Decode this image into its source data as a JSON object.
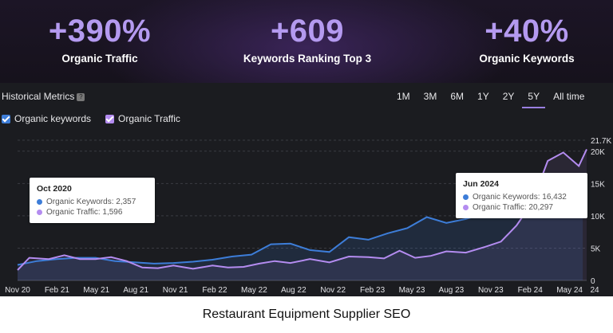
{
  "stats": [
    {
      "value": "+390%",
      "label": "Organic Traffic"
    },
    {
      "value": "+609",
      "label": "Keywords Ranking Top 3"
    },
    {
      "value": "+40%",
      "label": "Organic Keywords"
    }
  ],
  "panel": {
    "title": "Historical Metrics",
    "help_icon": "question-icon",
    "ranges": [
      "1M",
      "3M",
      "6M",
      "1Y",
      "2Y",
      "5Y",
      "All time"
    ],
    "active_range": "5Y",
    "legend": [
      {
        "label": "Organic keywords",
        "color": "#3d7dd8"
      },
      {
        "label": "Organic Traffic",
        "color": "#b48cf0"
      }
    ]
  },
  "tooltips": [
    {
      "title": "Oct 2020",
      "rows": [
        {
          "label": "Organic Keywords:",
          "value": "2,357"
        },
        {
          "label": "Organic Traffic:",
          "value": "1,596"
        }
      ]
    },
    {
      "title": "Jun 2024",
      "rows": [
        {
          "label": "Organic Keywords:",
          "value": "16,432"
        },
        {
          "label": "Organic Traffic:",
          "value": "20,297"
        }
      ]
    }
  ],
  "chart_data": {
    "type": "line",
    "x_labels": [
      "Nov 20",
      "Feb 21",
      "May 21",
      "Aug 21",
      "Nov 21",
      "Feb 22",
      "May 22",
      "Aug 22",
      "Nov 22",
      "Feb 23",
      "May 23",
      "Aug 23",
      "Nov 23",
      "Feb 24",
      "May 24",
      "24"
    ],
    "y_ticks": [
      0,
      5000,
      10000,
      15000,
      20000,
      21700
    ],
    "y_tick_labels": [
      "0",
      "5K",
      "10K",
      "15K",
      "20K",
      "21.7K"
    ],
    "ylim": [
      0,
      21700
    ],
    "series": [
      {
        "name": "Organic keywords",
        "color": "#3d7dd8",
        "x": [
          0,
          0.5,
          1,
          1.5,
          2,
          2.5,
          3,
          3.5,
          4,
          4.5,
          5,
          5.5,
          6,
          6.5,
          7,
          7.5,
          8,
          8.5,
          9,
          9.5,
          10,
          10.5,
          11,
          11.5,
          12,
          12.5,
          13,
          13.5,
          14,
          14.5
        ],
        "values": [
          2400,
          3000,
          3300,
          3500,
          3500,
          3000,
          2800,
          2600,
          2700,
          2900,
          3200,
          3700,
          4000,
          5600,
          5700,
          4700,
          4400,
          6700,
          6300,
          7300,
          8100,
          9800,
          8900,
          9500,
          10400,
          10600,
          11000,
          13200,
          13500,
          16400
        ]
      },
      {
        "name": "Organic Traffic",
        "color": "#b48cf0",
        "x": [
          0,
          0.3,
          0.8,
          1.2,
          1.6,
          2.0,
          2.4,
          2.8,
          3.2,
          3.6,
          4.0,
          4.5,
          5.0,
          5.4,
          5.8,
          6.2,
          6.6,
          7.0,
          7.5,
          8.0,
          8.5,
          9.0,
          9.4,
          9.8,
          10.2,
          10.6,
          11.0,
          11.5,
          12.0,
          12.4,
          12.8,
          13.2,
          13.6,
          14.0,
          14.4,
          14.6
        ],
        "values": [
          1600,
          3500,
          3300,
          3900,
          3300,
          3300,
          3600,
          3000,
          2000,
          1900,
          2300,
          1800,
          2300,
          2000,
          2100,
          2600,
          3000,
          2700,
          3300,
          2800,
          3700,
          3600,
          3400,
          4600,
          3500,
          3800,
          4500,
          4300,
          5200,
          6000,
          8500,
          12000,
          18500,
          19800,
          17700,
          20300
        ]
      }
    ]
  },
  "caption": "Restaurant Equipment Supplier SEO"
}
